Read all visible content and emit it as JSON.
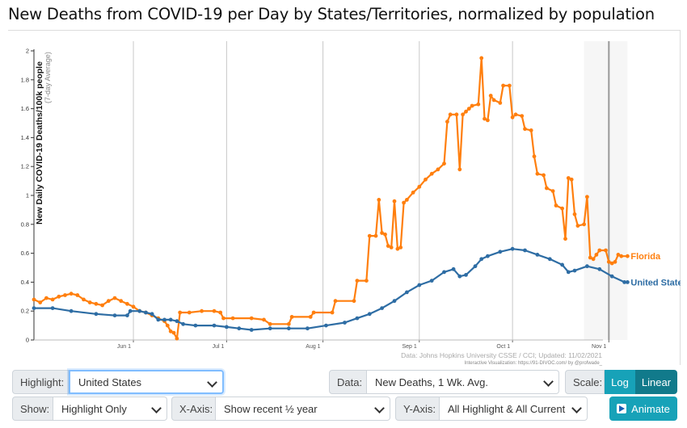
{
  "title": "New Deaths from COVID-19 per Day by States/Territories, normalized by population",
  "chart_data": {
    "type": "line",
    "ylabel": "New Daily COVID-19 Deaths/100k people",
    "ylabel_sub": "(7-day Average)",
    "ylim": [
      0,
      2
    ],
    "y_ticks": [
      "0",
      "0.2",
      "0.4",
      "0.6",
      "0.8",
      "1",
      "1.2",
      "1.4",
      "1.6",
      "1.8",
      "2"
    ],
    "x_ticks": [
      {
        "label": "Jun 1",
        "day": 32
      },
      {
        "label": "Jul 1",
        "day": 62
      },
      {
        "label": "Aug 1",
        "day": 93
      },
      {
        "label": "Sep 1",
        "day": 124
      },
      {
        "label": "Oct 1",
        "day": 154
      },
      {
        "label": "Nov 1",
        "day": 185
      }
    ],
    "xlim_days": [
      0,
      186
    ],
    "grid": "vertical",
    "source_text": "Data: Johns Hopkins University CSSE / CCI; Updated: 11/02/2021",
    "credit_text": "Interactive Visualization: https://91-DIVOC.com/ by @profwade_",
    "series": [
      {
        "name": "Florida",
        "color": "#ff7f0e",
        "points": [
          [
            0,
            0.28
          ],
          [
            2,
            0.26
          ],
          [
            4,
            0.29
          ],
          [
            6,
            0.28
          ],
          [
            8,
            0.3
          ],
          [
            10,
            0.31
          ],
          [
            12,
            0.32
          ],
          [
            14,
            0.31
          ],
          [
            16,
            0.28
          ],
          [
            18,
            0.26
          ],
          [
            20,
            0.25
          ],
          [
            22,
            0.24
          ],
          [
            24,
            0.27
          ],
          [
            26,
            0.29
          ],
          [
            28,
            0.27
          ],
          [
            30,
            0.25
          ],
          [
            32,
            0.23
          ],
          [
            34,
            0.2
          ],
          [
            36,
            0.19
          ],
          [
            38,
            0.17
          ],
          [
            40,
            0.15
          ],
          [
            42,
            0.13
          ],
          [
            43,
            0.1
          ],
          [
            44,
            0.06
          ],
          [
            45,
            0.05
          ],
          [
            46,
            0.01
          ],
          [
            47,
            0.19
          ],
          [
            50,
            0.19
          ],
          [
            54,
            0.2
          ],
          [
            58,
            0.2
          ],
          [
            60,
            0.19
          ],
          [
            61,
            0.15
          ],
          [
            64,
            0.15
          ],
          [
            70,
            0.15
          ],
          [
            74,
            0.14
          ],
          [
            76,
            0.11
          ],
          [
            82,
            0.11
          ],
          [
            83,
            0.16
          ],
          [
            89,
            0.16
          ],
          [
            90,
            0.19
          ],
          [
            96,
            0.19
          ],
          [
            97,
            0.27
          ],
          [
            103,
            0.27
          ],
          [
            104,
            0.41
          ],
          [
            107,
            0.41
          ],
          [
            108,
            0.72
          ],
          [
            110,
            0.72
          ],
          [
            111,
            0.97
          ],
          [
            112,
            0.74
          ],
          [
            113,
            0.73
          ],
          [
            114,
            0.65
          ],
          [
            115,
            0.64
          ],
          [
            116,
            0.96
          ],
          [
            117,
            0.63
          ],
          [
            118,
            0.64
          ],
          [
            119,
            0.95
          ],
          [
            120,
            0.97
          ],
          [
            122,
            1.02
          ],
          [
            124,
            1.06
          ],
          [
            126,
            1.11
          ],
          [
            128,
            1.15
          ],
          [
            130,
            1.18
          ],
          [
            132,
            1.22
          ],
          [
            133,
            1.51
          ],
          [
            134,
            1.56
          ],
          [
            136,
            1.56
          ],
          [
            137,
            1.18
          ],
          [
            138,
            1.56
          ],
          [
            139,
            1.58
          ],
          [
            140,
            1.6
          ],
          [
            141,
            1.62
          ],
          [
            143,
            1.63
          ],
          [
            144,
            1.95
          ],
          [
            145,
            1.53
          ],
          [
            146,
            1.52
          ],
          [
            147,
            1.69
          ],
          [
            148,
            1.66
          ],
          [
            150,
            1.64
          ],
          [
            151,
            1.76
          ],
          [
            153,
            1.76
          ],
          [
            154,
            1.54
          ],
          [
            155,
            1.56
          ],
          [
            157,
            1.55
          ],
          [
            158,
            1.46
          ],
          [
            160,
            1.45
          ],
          [
            161,
            1.27
          ],
          [
            162,
            1.15
          ],
          [
            164,
            1.14
          ],
          [
            165,
            1.05
          ],
          [
            167,
            1.03
          ],
          [
            168,
            0.93
          ],
          [
            170,
            0.91
          ],
          [
            171,
            0.7
          ],
          [
            172,
            1.12
          ],
          [
            173,
            1.11
          ],
          [
            174,
            0.87
          ],
          [
            175,
            0.79
          ],
          [
            177,
            0.8
          ],
          [
            178,
            0.99
          ],
          [
            179,
            0.57
          ],
          [
            180,
            0.56
          ],
          [
            181,
            0.59
          ],
          [
            182,
            0.62
          ],
          [
            184,
            0.62
          ],
          [
            185,
            0.54
          ],
          [
            186,
            0.53
          ],
          [
            187,
            0.54
          ],
          [
            188,
            0.59
          ],
          [
            189,
            0.58
          ],
          [
            191,
            0.58
          ]
        ]
      },
      {
        "name": "United States",
        "color": "#2e6da4",
        "points": [
          [
            0,
            0.22
          ],
          [
            6,
            0.22
          ],
          [
            12,
            0.2
          ],
          [
            20,
            0.18
          ],
          [
            26,
            0.17
          ],
          [
            30,
            0.17
          ],
          [
            31,
            0.2
          ],
          [
            34,
            0.2
          ],
          [
            36,
            0.19
          ],
          [
            38,
            0.18
          ],
          [
            40,
            0.14
          ],
          [
            42,
            0.14
          ],
          [
            44,
            0.14
          ],
          [
            46,
            0.13
          ],
          [
            48,
            0.11
          ],
          [
            52,
            0.1
          ],
          [
            58,
            0.1
          ],
          [
            62,
            0.09
          ],
          [
            66,
            0.08
          ],
          [
            70,
            0.07
          ],
          [
            76,
            0.08
          ],
          [
            82,
            0.08
          ],
          [
            88,
            0.08
          ],
          [
            94,
            0.1
          ],
          [
            100,
            0.12
          ],
          [
            104,
            0.15
          ],
          [
            108,
            0.18
          ],
          [
            112,
            0.22
          ],
          [
            116,
            0.27
          ],
          [
            120,
            0.33
          ],
          [
            124,
            0.38
          ],
          [
            128,
            0.41
          ],
          [
            132,
            0.47
          ],
          [
            135,
            0.49
          ],
          [
            137,
            0.44
          ],
          [
            139,
            0.45
          ],
          [
            142,
            0.51
          ],
          [
            144,
            0.56
          ],
          [
            146,
            0.58
          ],
          [
            150,
            0.61
          ],
          [
            154,
            0.63
          ],
          [
            158,
            0.62
          ],
          [
            162,
            0.59
          ],
          [
            166,
            0.56
          ],
          [
            170,
            0.52
          ],
          [
            172,
            0.47
          ],
          [
            174,
            0.48
          ],
          [
            178,
            0.51
          ],
          [
            182,
            0.49
          ],
          [
            186,
            0.44
          ],
          [
            190,
            0.4
          ],
          [
            191,
            0.4
          ]
        ]
      }
    ]
  },
  "controls": {
    "highlight_label": "Highlight:",
    "highlight_value": "United States",
    "data_label": "Data:",
    "data_value": "New Deaths, 1 Wk. Avg.",
    "scale_label": "Scale:",
    "scale_log": "Log",
    "scale_linear": "Linear",
    "show_label": "Show:",
    "show_value": "Highlight Only",
    "xaxis_label": "X-Axis:",
    "xaxis_value": "Show recent ½ year",
    "yaxis_label": "Y-Axis:",
    "yaxis_value": "All Highlight & All Current",
    "animate_label": "Animate"
  }
}
